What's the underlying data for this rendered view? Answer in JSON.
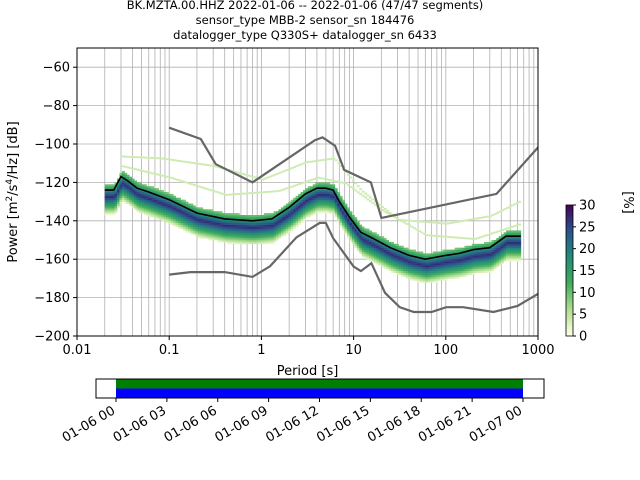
{
  "chart_data": {
    "type": "heatmap",
    "title_lines": [
      "BK.MZTA.00.HHZ   2022-01-06 -- 2022-01-06  (47/47 segments)",
      "sensor_type MBB-2 sensor_sn 184476",
      "datalogger_type Q330S+ datalogger_sn 6433"
    ],
    "xlabel": "Period [s]",
    "ylabel_parts": [
      "Power [m",
      "2",
      "/s",
      "4",
      "/Hz] [dB]"
    ],
    "x_scale": "log",
    "xlim": [
      0.01,
      1000
    ],
    "ylim": [
      -200,
      -50
    ],
    "x_ticks": [
      {
        "value": 0.01,
        "label": "0.01"
      },
      {
        "value": 0.1,
        "label": "0.1"
      },
      {
        "value": 1,
        "label": "1"
      },
      {
        "value": 10,
        "label": "10"
      },
      {
        "value": 100,
        "label": "100"
      },
      {
        "value": 1000,
        "label": "1000"
      }
    ],
    "y_ticks": [
      {
        "value": -60,
        "label": "−60"
      },
      {
        "value": -80,
        "label": "−80"
      },
      {
        "value": -100,
        "label": "−100"
      },
      {
        "value": -120,
        "label": "−120"
      },
      {
        "value": -140,
        "label": "−140"
      },
      {
        "value": -160,
        "label": "−160"
      },
      {
        "value": -180,
        "label": "−180"
      },
      {
        "value": -200,
        "label": "−200"
      }
    ],
    "grid": true,
    "nhnm": [
      [
        0.1,
        -91.5
      ],
      [
        0.22,
        -97.4
      ],
      [
        0.32,
        -110.5
      ],
      [
        0.8,
        -120
      ],
      [
        3.8,
        -98
      ],
      [
        4.6,
        -96.5
      ],
      [
        6.3,
        -101
      ],
      [
        7.9,
        -113.5
      ],
      [
        15.4,
        -120
      ],
      [
        20,
        -138.5
      ],
      [
        354.8,
        -126
      ],
      [
        10000,
        -48
      ]
    ],
    "nlnm": [
      [
        0.1,
        -168
      ],
      [
        0.17,
        -166.7
      ],
      [
        0.4,
        -166.7
      ],
      [
        0.8,
        -169.2
      ],
      [
        1.24,
        -163.7
      ],
      [
        2.4,
        -148.6
      ],
      [
        4.3,
        -141.1
      ],
      [
        5,
        -141.1
      ],
      [
        6,
        -149
      ],
      [
        10,
        -163.8
      ],
      [
        12,
        -166.2
      ],
      [
        15.6,
        -162.1
      ],
      [
        21.9,
        -177.5
      ],
      [
        31.6,
        -185
      ],
      [
        45,
        -187.5
      ],
      [
        70,
        -187.5
      ],
      [
        101,
        -185
      ],
      [
        154,
        -185
      ],
      [
        328,
        -187.5
      ],
      [
        600,
        -184.4
      ],
      [
        1000,
        -178
      ]
    ],
    "mean_curve": [
      [
        0.02,
        -124
      ],
      [
        0.025,
        -124
      ],
      [
        0.03,
        -117
      ],
      [
        0.035,
        -119
      ],
      [
        0.045,
        -123
      ],
      [
        0.06,
        -125
      ],
      [
        0.1,
        -129
      ],
      [
        0.2,
        -136
      ],
      [
        0.4,
        -139
      ],
      [
        0.8,
        -140
      ],
      [
        1.3,
        -139
      ],
      [
        2,
        -133
      ],
      [
        3,
        -126
      ],
      [
        4,
        -123
      ],
      [
        5,
        -123
      ],
      [
        6,
        -124
      ],
      [
        7,
        -130
      ],
      [
        9,
        -138
      ],
      [
        12,
        -146
      ],
      [
        16,
        -149
      ],
      [
        25,
        -154
      ],
      [
        40,
        -158
      ],
      [
        60,
        -160
      ],
      [
        100,
        -158
      ],
      [
        140,
        -157
      ],
      [
        200,
        -155
      ],
      [
        300,
        -154
      ],
      [
        450,
        -148
      ],
      [
        650,
        -148
      ]
    ],
    "dense_band": {
      "offset_db": 4,
      "width_db": 9
    },
    "sparse_traces": [
      [
        [
          0.03,
          -107
        ],
        [
          0.08,
          -108
        ],
        [
          0.3,
          -112
        ],
        [
          1,
          -119
        ],
        [
          3,
          -110
        ],
        [
          6,
          -108
        ],
        [
          12,
          -125
        ],
        [
          30,
          -140
        ],
        [
          100,
          -142
        ],
        [
          300,
          -138
        ],
        [
          650,
          -130
        ]
      ],
      [
        [
          0.03,
          -112
        ],
        [
          0.1,
          -118
        ],
        [
          0.4,
          -127
        ],
        [
          1.5,
          -125
        ],
        [
          4,
          -118
        ],
        [
          8,
          -121
        ],
        [
          20,
          -135
        ],
        [
          60,
          -148
        ],
        [
          200,
          -150
        ],
        [
          650,
          -142
        ]
      ]
    ],
    "colorbar": {
      "label": "[%]",
      "min": 0,
      "max": 30,
      "ticks": [
        "0",
        "5",
        "10",
        "15",
        "20",
        "25",
        "30"
      ]
    },
    "time_axis": {
      "labels": [
        "01-06 00",
        "01-06 03",
        "01-06 06",
        "01-06 09",
        "01-06 12",
        "01-06 15",
        "01-06 18",
        "01-06 21",
        "01-07 00"
      ],
      "coverage_start": "01-06 00",
      "coverage_end": "01-07 00",
      "coverage_colors": {
        "top": "#008000",
        "bottom": "#0000ff"
      }
    }
  }
}
